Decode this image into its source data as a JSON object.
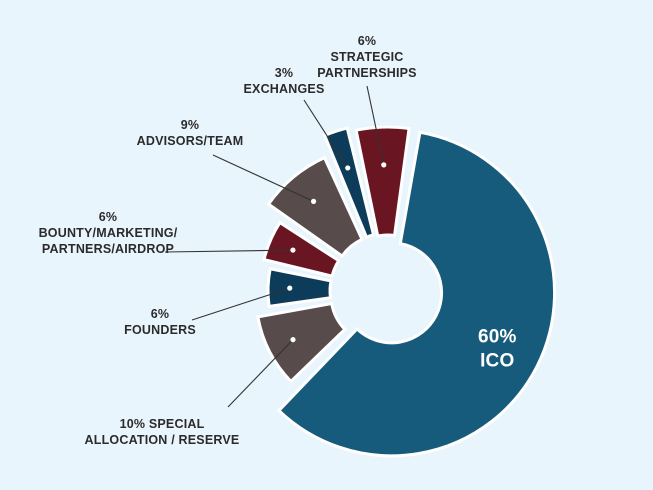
{
  "chart_data": {
    "type": "pie",
    "style": "donut with exploded segments",
    "title": "",
    "slices": [
      {
        "label": "ICO",
        "value": 60,
        "color": "#175b7c",
        "percent_text": "60%",
        "name_lines": [
          "ICO"
        ]
      },
      {
        "label": "SPECIAL ALLOCATION / RESERVE",
        "value": 10,
        "color": "#584b4c",
        "percent_text": "10% SPECIAL",
        "name_lines": [
          "ALLOCATION / RESERVE"
        ]
      },
      {
        "label": "FOUNDERS",
        "value": 6,
        "color": "#0c3c5a",
        "percent_text": "6%",
        "name_lines": [
          "FOUNDERS"
        ]
      },
      {
        "label": "BOUNTY/MARKETING/PARTNERS/AIRDROP",
        "value": 6,
        "color": "#6a1522",
        "percent_text": "6%",
        "name_lines": [
          "BOUNTY/MARKETING/",
          "PARTNERS/AIRDROP"
        ]
      },
      {
        "label": "ADVISORS/TEAM",
        "value": 9,
        "color": "#584b4c",
        "percent_text": "9%",
        "name_lines": [
          "ADVISORS/TEAM"
        ]
      },
      {
        "label": "EXCHANGES",
        "value": 3,
        "color": "#0c3c5a",
        "percent_text": "3%",
        "name_lines": [
          "EXCHANGES"
        ]
      },
      {
        "label": "STRATEGIC PARTNERSHIPS",
        "value": 6,
        "color": "#6a1522",
        "percent_text": "6%",
        "name_lines": [
          "STRATEGIC",
          "PARTNERSHIPS"
        ]
      }
    ],
    "label_color": "#2b2b2b",
    "inner_label_color": "#ffffff",
    "background": "#e8f5fd"
  }
}
